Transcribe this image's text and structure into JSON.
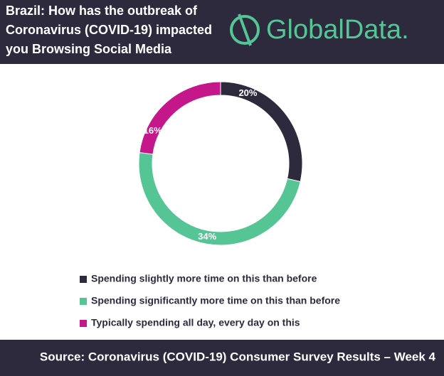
{
  "chart_data": {
    "type": "donut",
    "title": [
      "Brazil: How has the outbreak of",
      "Coronavirus (COVID-19) impacted",
      "you Browsing Social Media"
    ],
    "logo": "GlobalData.",
    "categories": [
      "Spending slightly more time on this than before",
      "Spending significantly more time on this than before",
      "Typically spending all day, every day on this"
    ],
    "values": [
      20,
      34,
      16
    ],
    "value_labels": [
      "20%",
      "34%",
      "16%"
    ],
    "colors": [
      "#2d2a3e",
      "#56c596",
      "#c4178a"
    ],
    "source": "Source: Coronavirus (COVID-19) Consumer Survey Results – Week 4"
  }
}
